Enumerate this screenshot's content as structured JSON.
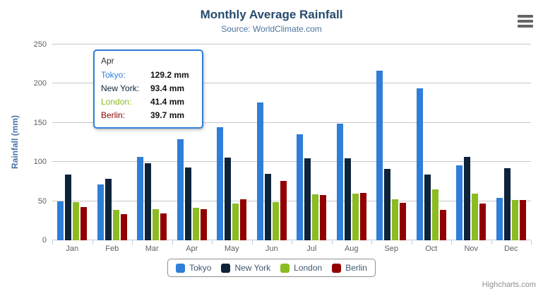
{
  "chart_data": {
    "type": "bar",
    "title": "Monthly Average Rainfall",
    "subtitle": "Source: WorldClimate.com",
    "categories": [
      "Jan",
      "Feb",
      "Mar",
      "Apr",
      "May",
      "Jun",
      "Jul",
      "Aug",
      "Sep",
      "Oct",
      "Nov",
      "Dec"
    ],
    "series": [
      {
        "name": "Tokyo",
        "color": "#2f7ed8",
        "values": [
          49.9,
          71.5,
          106.4,
          129.2,
          144.0,
          176.0,
          135.6,
          148.5,
          216.4,
          194.1,
          95.6,
          54.4
        ]
      },
      {
        "name": "New York",
        "color": "#0d233a",
        "values": [
          83.6,
          78.8,
          98.5,
          93.4,
          106.0,
          84.5,
          105.0,
          104.3,
          91.2,
          83.5,
          106.6,
          92.3
        ]
      },
      {
        "name": "London",
        "color": "#8bbc21",
        "values": [
          48.9,
          38.8,
          39.3,
          41.4,
          47.0,
          48.3,
          59.0,
          59.6,
          52.4,
          65.2,
          59.3,
          51.2
        ]
      },
      {
        "name": "Berlin",
        "color": "#910000",
        "values": [
          42.4,
          33.2,
          34.5,
          39.7,
          52.6,
          75.5,
          57.4,
          60.4,
          47.6,
          39.1,
          46.8,
          51.1
        ]
      }
    ],
    "xlabel": "",
    "ylabel": "Rainfall (mm)",
    "ylim": [
      0,
      250
    ],
    "yticks": [
      0,
      50,
      100,
      150,
      200,
      250
    ],
    "grid": true,
    "legend_position": "bottom"
  },
  "tooltip": {
    "header": "Apr",
    "rows": [
      {
        "label": "Tokyo:",
        "value": "129.2 mm",
        "color": "#2f7ed8"
      },
      {
        "label": "New York:",
        "value": "93.4 mm",
        "color": "#0d233a"
      },
      {
        "label": "London:",
        "value": "41.4 mm",
        "color": "#8bbc21"
      },
      {
        "label": "Berlin:",
        "value": "39.7 mm",
        "color": "#910000"
      }
    ]
  },
  "credits": "Highcharts.com",
  "colors": {
    "title": "#274b6d",
    "subtitle": "#4d759e",
    "axis_title": "#4572a7",
    "tick_label": "#606060",
    "gridline": "#c8c8c8",
    "axis_line": "#c0d0e0",
    "legend_border": "#909090",
    "legend_text": "#3e576f",
    "tooltip_border": "#2f7ed8",
    "credits_text": "#909090"
  }
}
